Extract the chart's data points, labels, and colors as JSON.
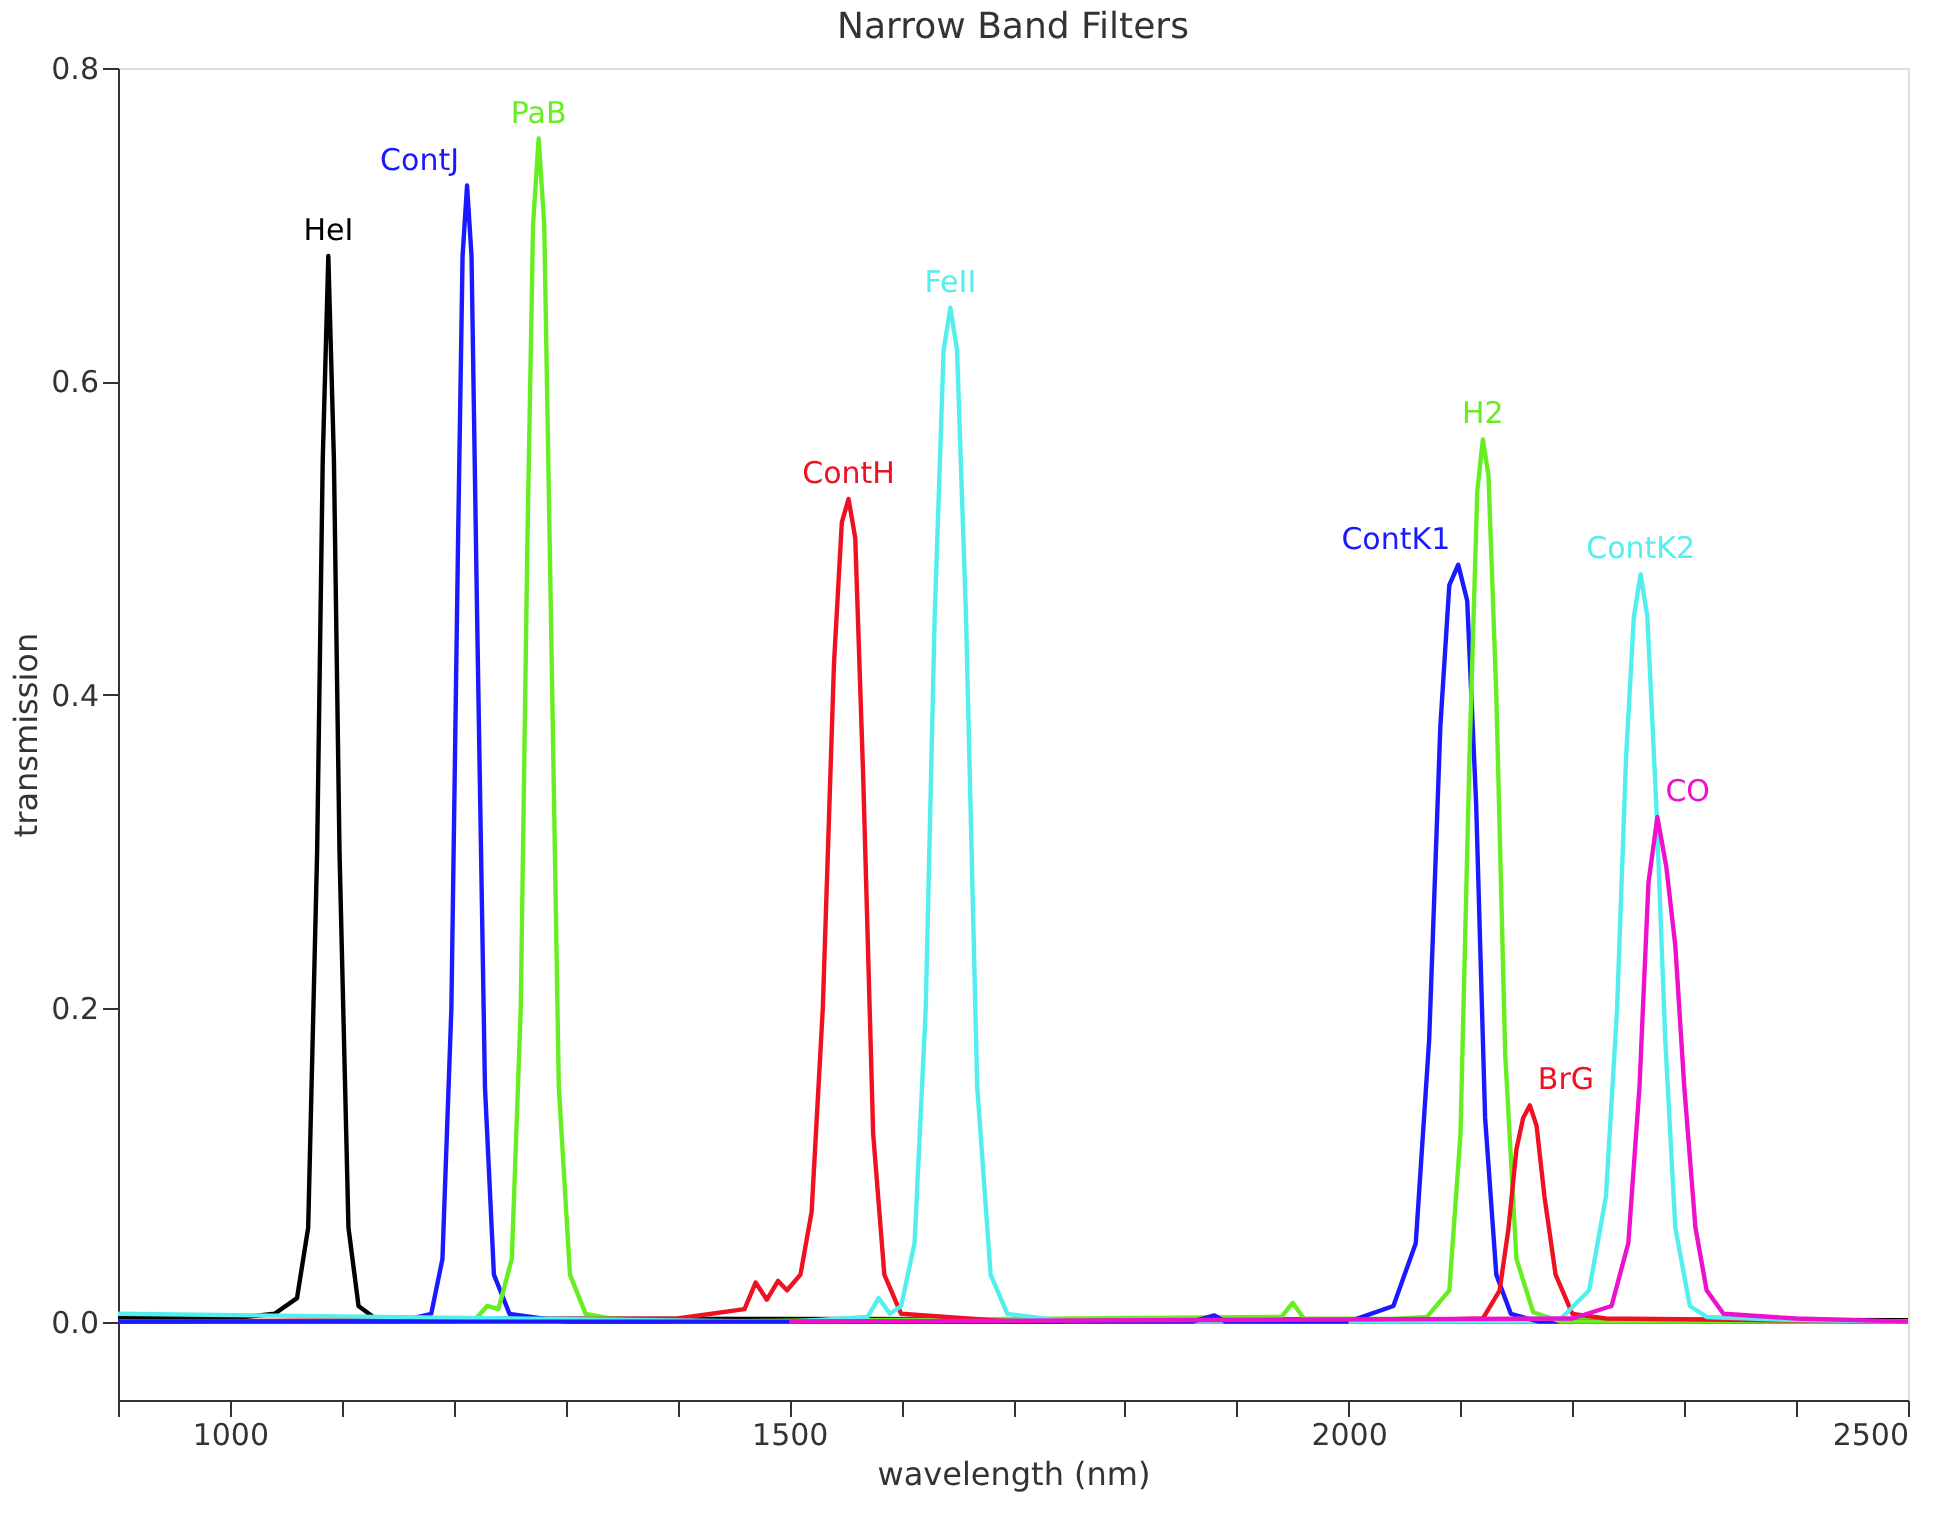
{
  "chart_data": {
    "type": "line",
    "title": "Narrow Band Filters",
    "xlabel": "wavelength (nm)",
    "ylabel": "transmission",
    "xlim": [
      900,
      2500
    ],
    "ylim": [
      -0.05,
      0.8
    ],
    "xticks": [
      {
        "value": 900,
        "label": null
      },
      1000,
      {
        "value": 1100,
        "label": null
      },
      {
        "value": 1200,
        "label": null
      },
      {
        "value": 1300,
        "label": null
      },
      {
        "value": 1400,
        "label": null
      },
      1500,
      {
        "value": 1600,
        "label": null
      },
      {
        "value": 1700,
        "label": null
      },
      {
        "value": 1800,
        "label": null
      },
      {
        "value": 1900,
        "label": null
      },
      2000,
      {
        "value": 2100,
        "label": null
      },
      {
        "value": 2200,
        "label": null
      },
      {
        "value": 2300,
        "label": null
      },
      {
        "value": 2400,
        "label": null
      },
      2500
    ],
    "yticks": [
      {
        "value": 0.0,
        "label": "0.0"
      },
      0.2,
      0.4,
      0.6,
      0.8
    ],
    "grid": false,
    "legend": false,
    "marker": "none",
    "line_style": "solid",
    "series": [
      {
        "name": "HeI",
        "color": "#000000",
        "x": [
          900,
          1000,
          1040,
          1060,
          1070,
          1078,
          1083,
          1088,
          1093,
          1098,
          1106,
          1115,
          1130,
          2500
        ],
        "values": [
          0.003,
          0.002,
          0.005,
          0.015,
          0.06,
          0.3,
          0.55,
          0.68,
          0.55,
          0.3,
          0.06,
          0.01,
          0.002,
          0.001
        ]
      },
      {
        "name": "ContJ",
        "color": "#1a1aff",
        "x": [
          900,
          1150,
          1180,
          1190,
          1198,
          1204,
          1208,
          1212,
          1216,
          1221,
          1228,
          1236,
          1250,
          1300,
          2500
        ],
        "values": [
          0.0,
          0.0,
          0.005,
          0.04,
          0.2,
          0.5,
          0.68,
          0.725,
          0.68,
          0.45,
          0.15,
          0.03,
          0.005,
          0.0,
          0.0
        ]
      },
      {
        "name": "PaB",
        "color": "#66ee22",
        "x": [
          900,
          1200,
          1220,
          1230,
          1240,
          1252,
          1260,
          1266,
          1271,
          1276,
          1281,
          1287,
          1294,
          1304,
          1318,
          1340,
          1400,
          1940,
          1950,
          1960,
          2500
        ],
        "values": [
          0.0,
          0.0,
          0.002,
          0.01,
          0.008,
          0.04,
          0.2,
          0.5,
          0.7,
          0.755,
          0.7,
          0.45,
          0.15,
          0.03,
          0.005,
          0.002,
          0.0,
          0.003,
          0.012,
          0.002,
          0.0
        ]
      },
      {
        "name": "ContH",
        "color": "#ee1122",
        "x": [
          900,
          1400,
          1460,
          1470,
          1480,
          1490,
          1498,
          1510,
          1520,
          1530,
          1540,
          1547,
          1553,
          1559,
          1566,
          1575,
          1585,
          1600,
          1700,
          2500
        ],
        "values": [
          0.0,
          0.002,
          0.008,
          0.025,
          0.014,
          0.026,
          0.02,
          0.03,
          0.07,
          0.2,
          0.42,
          0.51,
          0.525,
          0.5,
          0.35,
          0.12,
          0.03,
          0.005,
          0.0,
          0.0
        ]
      },
      {
        "name": "FeII",
        "color": "#55eeee",
        "x": [
          900,
          1500,
          1570,
          1580,
          1590,
          1600,
          1612,
          1622,
          1630,
          1638,
          1644,
          1650,
          1658,
          1668,
          1680,
          1695,
          1750,
          2500
        ],
        "values": [
          0.005,
          0.0,
          0.003,
          0.015,
          0.005,
          0.01,
          0.05,
          0.2,
          0.45,
          0.62,
          0.647,
          0.62,
          0.45,
          0.15,
          0.03,
          0.005,
          0.0,
          0.0
        ]
      },
      {
        "name": "ContK1",
        "color": "#1a1aff",
        "x": [
          900,
          1860,
          1880,
          1890,
          2000,
          2040,
          2060,
          2072,
          2082,
          2090,
          2098,
          2106,
          2114,
          2122,
          2132,
          2145,
          2170,
          2500
        ],
        "values": [
          0.0,
          0.0,
          0.004,
          0.0,
          0.0,
          0.01,
          0.05,
          0.18,
          0.38,
          0.47,
          0.483,
          0.46,
          0.33,
          0.13,
          0.03,
          0.005,
          0.0,
          0.0
        ]
      },
      {
        "name": "H2",
        "color": "#66ee22",
        "x": [
          2000,
          2070,
          2090,
          2100,
          2108,
          2115,
          2120,
          2125,
          2132,
          2140,
          2150,
          2165,
          2190,
          2500
        ],
        "values": [
          0.0,
          0.003,
          0.02,
          0.12,
          0.36,
          0.53,
          0.563,
          0.54,
          0.4,
          0.17,
          0.04,
          0.006,
          0.0,
          0.0
        ]
      },
      {
        "name": "BrG",
        "color": "#ee1122",
        "x": [
          2000,
          2120,
          2135,
          2143,
          2150,
          2156,
          2162,
          2168,
          2175,
          2185,
          2200,
          2230,
          2500
        ],
        "values": [
          0.0,
          0.002,
          0.02,
          0.06,
          0.11,
          0.13,
          0.138,
          0.125,
          0.08,
          0.03,
          0.005,
          0.002,
          0.0
        ]
      },
      {
        "name": "ContK2",
        "color": "#55eeee",
        "x": [
          2000,
          2190,
          2215,
          2230,
          2240,
          2248,
          2255,
          2261,
          2267,
          2275,
          2283,
          2292,
          2305,
          2320,
          2400,
          2500
        ],
        "values": [
          0.0,
          0.002,
          0.02,
          0.08,
          0.2,
          0.36,
          0.45,
          0.477,
          0.45,
          0.33,
          0.18,
          0.06,
          0.01,
          0.003,
          0.001,
          0.0
        ]
      },
      {
        "name": "CO",
        "color": "#ee11cc",
        "x": [
          1500,
          2200,
          2235,
          2250,
          2260,
          2268,
          2276,
          2284,
          2292,
          2300,
          2310,
          2320,
          2335,
          2400,
          2500
        ],
        "values": [
          0.0,
          0.002,
          0.01,
          0.05,
          0.15,
          0.28,
          0.322,
          0.29,
          0.24,
          0.15,
          0.06,
          0.02,
          0.005,
          0.002,
          0.0
        ]
      }
    ]
  }
}
